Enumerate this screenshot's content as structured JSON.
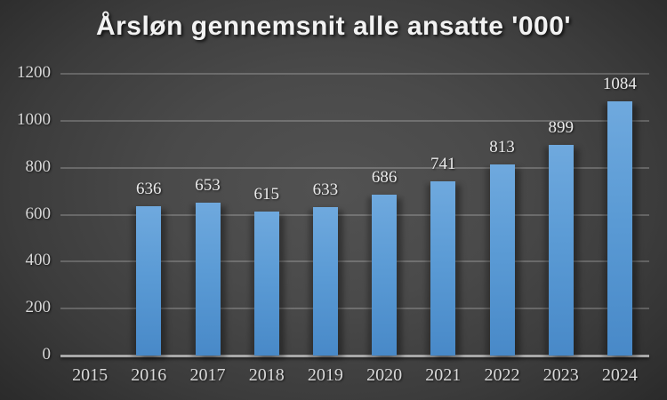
{
  "title": "Årsløn gennemsnit alle ansatte '000'",
  "chart_data": {
    "type": "bar",
    "title": "Årsløn gennemsnit alle ansatte '000'",
    "categories": [
      "2015",
      "2016",
      "2017",
      "2018",
      "2019",
      "2020",
      "2021",
      "2022",
      "2023",
      "2024"
    ],
    "values": [
      null,
      636,
      653,
      615,
      633,
      686,
      741,
      813,
      899,
      1084
    ],
    "data_labels": [
      "",
      "636",
      "653",
      "615",
      "633",
      "686",
      "741",
      "813",
      "899",
      "1084"
    ],
    "xlabel": "",
    "ylabel": "",
    "ylim": [
      0,
      1200
    ],
    "yticks": [
      0,
      200,
      400,
      600,
      800,
      1000,
      1200
    ],
    "grid": true,
    "legend": false,
    "colors": {
      "bar": "#5B9BD5",
      "bar_gradient_top": "#6FA9DE",
      "bar_gradient_bottom": "#4889C8",
      "background_center": "#525252",
      "background_edge": "#232323",
      "gridline": "#757575",
      "axis_line": "#A8A8A8",
      "title_text": "#F2F2F2",
      "tick_text": "#D8D8D8",
      "data_label_text": "#EAEAEA"
    }
  }
}
